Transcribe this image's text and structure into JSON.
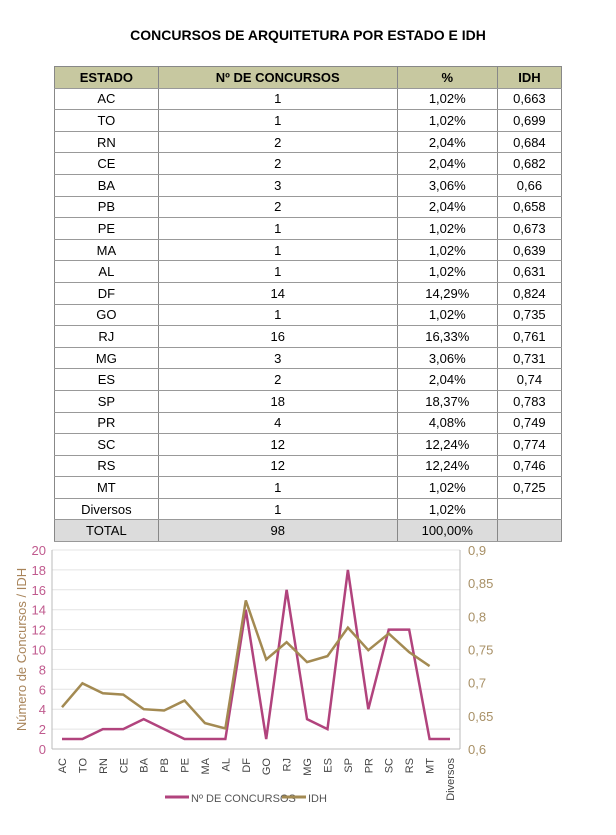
{
  "title": "CONCURSOS DE ARQUITETURA POR ESTADO E IDH",
  "table": {
    "headers": [
      "ESTADO",
      "Nº DE CONCURSOS",
      "%",
      "IDH"
    ],
    "rows": [
      [
        "AC",
        "1",
        "1,02%",
        "0,663"
      ],
      [
        "TO",
        "1",
        "1,02%",
        "0,699"
      ],
      [
        "RN",
        "2",
        "2,04%",
        "0,684"
      ],
      [
        "CE",
        "2",
        "2,04%",
        "0,682"
      ],
      [
        "BA",
        "3",
        "3,06%",
        "0,66"
      ],
      [
        "PB",
        "2",
        "2,04%",
        "0,658"
      ],
      [
        "PE",
        "1",
        "1,02%",
        "0,673"
      ],
      [
        "MA",
        "1",
        "1,02%",
        "0,639"
      ],
      [
        "AL",
        "1",
        "1,02%",
        "0,631"
      ],
      [
        "DF",
        "14",
        "14,29%",
        "0,824"
      ],
      [
        "GO",
        "1",
        "1,02%",
        "0,735"
      ],
      [
        "RJ",
        "16",
        "16,33%",
        "0,761"
      ],
      [
        "MG",
        "3",
        "3,06%",
        "0,731"
      ],
      [
        "ES",
        "2",
        "2,04%",
        "0,74"
      ],
      [
        "SP",
        "18",
        "18,37%",
        "0,783"
      ],
      [
        "PR",
        "4",
        "4,08%",
        "0,749"
      ],
      [
        "SC",
        "12",
        "12,24%",
        "0,774"
      ],
      [
        "RS",
        "12",
        "12,24%",
        "0,746"
      ],
      [
        "MT",
        "1",
        "1,02%",
        "0,725"
      ],
      [
        "Diversos",
        "1",
        "1,02%",
        ""
      ]
    ],
    "total": [
      "TOTAL",
      "98",
      "100,00%",
      ""
    ]
  },
  "chart_data": {
    "type": "line",
    "categories": [
      "AC",
      "TO",
      "RN",
      "CE",
      "BA",
      "PB",
      "PE",
      "MA",
      "AL",
      "DF",
      "GO",
      "RJ",
      "MG",
      "ES",
      "SP",
      "PR",
      "SC",
      "RS",
      "MT",
      "Diversos"
    ],
    "series": [
      {
        "name": "Nº DE CONCURSOS",
        "axis": "left",
        "color": "#b1437d",
        "values": [
          1,
          1,
          2,
          2,
          3,
          2,
          1,
          1,
          1,
          14,
          1,
          16,
          3,
          2,
          18,
          4,
          12,
          12,
          1,
          1
        ]
      },
      {
        "name": "IDH",
        "axis": "right",
        "color": "#a38a52",
        "values": [
          0.663,
          0.699,
          0.684,
          0.682,
          0.66,
          0.658,
          0.673,
          0.639,
          0.631,
          0.824,
          0.735,
          0.761,
          0.731,
          0.74,
          0.783,
          0.749,
          0.774,
          0.746,
          0.725,
          null
        ]
      }
    ],
    "ylabel": "Número de Concursos  /  IDH",
    "ylim": [
      0,
      20
    ],
    "yticks": [
      "0",
      "2",
      "4",
      "6",
      "8",
      "10",
      "12",
      "14",
      "16",
      "18",
      "20"
    ],
    "y2lim": [
      0.6,
      0.9
    ],
    "y2ticks": [
      "0,6",
      "0,65",
      "0,7",
      "0,75",
      "0,8",
      "0,85",
      "0,9"
    ],
    "grid": true,
    "legend": "bottom"
  }
}
